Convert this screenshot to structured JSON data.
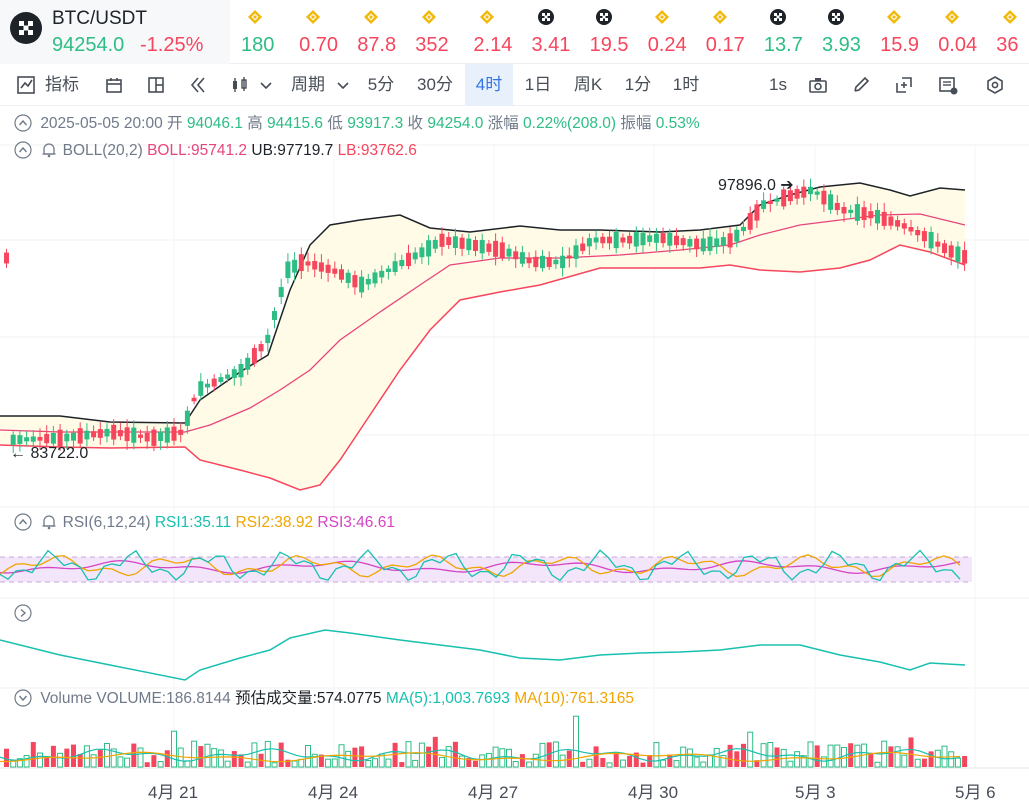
{
  "header": {
    "symbol": "BTC/USDT",
    "price": "94254.0",
    "change": "-1.25%",
    "tickers": [
      {
        "icon": "binance-coin-icon",
        "value": "180",
        "dir": "up"
      },
      {
        "icon": "binance-coin-icon",
        "value": "0.70",
        "dir": "down"
      },
      {
        "icon": "binance-coin-icon",
        "value": "87.8",
        "dir": "down"
      },
      {
        "icon": "binance-coin-icon",
        "value": "352",
        "dir": "down"
      },
      {
        "icon": "binance-coin-icon",
        "value": "2.14",
        "dir": "down"
      },
      {
        "icon": "checker-coin-icon",
        "value": "3.41",
        "dir": "down"
      },
      {
        "icon": "checker-coin-icon",
        "value": "19.5",
        "dir": "down"
      },
      {
        "icon": "binance-coin-icon",
        "value": "0.24",
        "dir": "down"
      },
      {
        "icon": "binance-coin-icon",
        "value": "0.17",
        "dir": "down"
      },
      {
        "icon": "checker-coin-icon",
        "value": "13.7",
        "dir": "up"
      },
      {
        "icon": "checker-coin-icon",
        "value": "3.93",
        "dir": "up"
      },
      {
        "icon": "binance-coin-icon",
        "value": "15.9",
        "dir": "down"
      },
      {
        "icon": "binance-coin-icon",
        "value": "0.04",
        "dir": "down"
      },
      {
        "icon": "binance-coin-icon",
        "value": "36",
        "dir": "down"
      }
    ]
  },
  "toolbar": {
    "indicator_label": "指标",
    "period_label": "周期",
    "intervals": [
      "5分",
      "30分",
      "4时",
      "1日",
      "周K",
      "1分",
      "1时",
      "1s"
    ],
    "active_interval": "4时"
  },
  "ohlc": {
    "date": "2025-05-05 20:00",
    "open_label": "开",
    "open": "94046.1",
    "high_label": "高",
    "high": "94415.6",
    "low_label": "低",
    "low": "93917.3",
    "close_label": "收",
    "close": "94254.0",
    "amp_label": "涨幅",
    "amp": "0.22%(208.0)",
    "range_label": "振幅",
    "range": "0.53%"
  },
  "boll": {
    "name": "BOLL(20,2)",
    "boll": "BOLL:95741.2",
    "ub": "UB:97719.7",
    "lb": "LB:93762.6"
  },
  "rsi": {
    "name": "RSI(6,12,24)",
    "rsi1": "RSI1:35.11",
    "rsi2": "RSI2:38.92",
    "rsi3": "RSI3:46.61"
  },
  "volume": {
    "name": "Volume",
    "vol": "VOLUME:186.8144",
    "est": "预估成交量:574.0775",
    "ma5": "MA(5):1,003.7693",
    "ma10": "MA(10):761.3165"
  },
  "price_marks": {
    "high": "97896.0",
    "low": "83722.0"
  },
  "x_axis": [
    "4月 21",
    "4月 24",
    "4月 27",
    "4月 30",
    "5月 3",
    "5月 6"
  ],
  "colors": {
    "up": "#2ebd85",
    "down": "#f6465d",
    "boll_mid": "#e8457a",
    "ub": "#1e2329",
    "lb": "#f6465d",
    "band_fill": "#fffbe6"
  }
}
